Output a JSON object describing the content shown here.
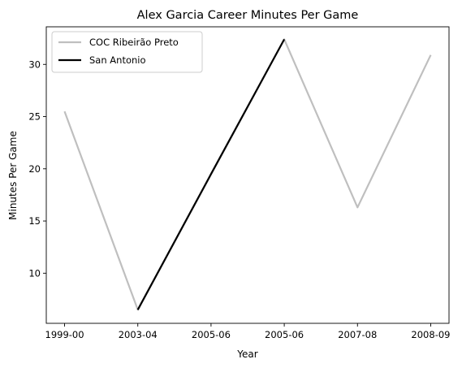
{
  "chart_data": {
    "type": "line",
    "title": "Alex Garcia  Career Minutes Per Game",
    "xlabel": "Year",
    "ylabel": "Minutes Per Game",
    "categories": [
      "1999-00",
      "2003-04",
      "2005-06",
      "2005-06",
      "2007-08",
      "2008-09"
    ],
    "yticks": [
      10,
      15,
      20,
      25,
      30
    ],
    "ylim": [
      5.2,
      33.6
    ],
    "series": [
      {
        "name": "COC Ribeirão Preto",
        "color": "#bfbfbf",
        "points": [
          [
            0,
            25.5
          ],
          [
            1,
            6.5
          ],
          [
            3,
            32.4
          ],
          [
            4,
            16.3
          ],
          [
            5,
            30.9
          ]
        ]
      },
      {
        "name": "San Antonio",
        "color": "#000000",
        "points": [
          [
            1,
            6.5
          ],
          [
            2.0,
            19.5
          ],
          [
            3,
            32.4
          ]
        ]
      }
    ],
    "legend_position": "upper-left",
    "grid": false
  }
}
